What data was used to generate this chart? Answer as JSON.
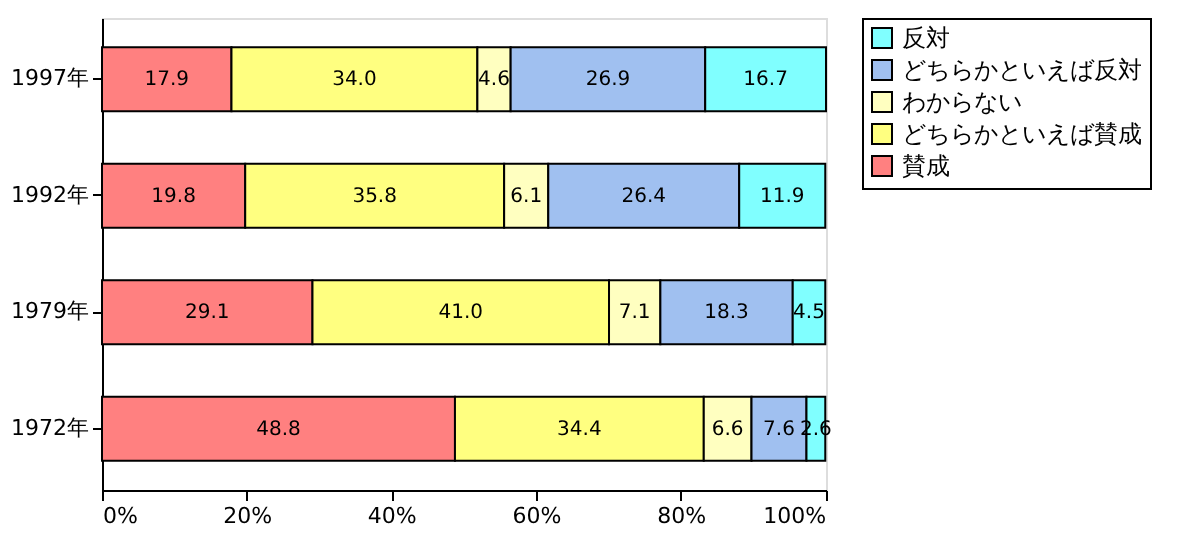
{
  "chart_data": {
    "type": "bar",
    "orientation": "horizontal",
    "stacked": true,
    "legend": "right",
    "grid": false,
    "categories": [
      "1997年",
      "1992年",
      "1979年",
      "1972年"
    ],
    "series": [
      {
        "name": "賛成",
        "color": "#ff8080",
        "values": [
          17.9,
          19.8,
          29.1,
          48.8
        ],
        "value_labels": [
          "17.9",
          "19.8",
          "29.1",
          "48.8"
        ]
      },
      {
        "name": "どちらかといえば賛成",
        "color": "#ffff80",
        "values": [
          34.0,
          35.8,
          41.0,
          34.4
        ],
        "value_labels": [
          "34.0",
          "35.8",
          "41.0",
          "34.4"
        ]
      },
      {
        "name": "わからない",
        "color": "#ffffc0",
        "values": [
          4.6,
          6.1,
          7.1,
          6.6
        ],
        "value_labels": [
          "4.6",
          "6.1",
          "7.1",
          "6.6"
        ]
      },
      {
        "name": "どちらかといえば反対",
        "color": "#a0c0f0",
        "values": [
          26.9,
          26.4,
          18.3,
          7.6
        ],
        "value_labels": [
          "26.9",
          "26.4",
          "18.3",
          "7.6"
        ]
      },
      {
        "name": "反対",
        "color": "#80ffff",
        "values": [
          16.7,
          11.9,
          4.5,
          2.6
        ],
        "value_labels": [
          "16.7",
          "11.9",
          "4.5",
          "2.6"
        ]
      }
    ],
    "xlim": [
      0,
      100.1
    ],
    "xticks": [
      {
        "value": 0,
        "label": "0%"
      },
      {
        "value": 20,
        "label": "20%"
      },
      {
        "value": 40,
        "label": "40%"
      },
      {
        "value": 60,
        "label": "60%"
      },
      {
        "value": 80,
        "label": "80%"
      },
      {
        "value": 100,
        "label": "100%"
      }
    ]
  }
}
